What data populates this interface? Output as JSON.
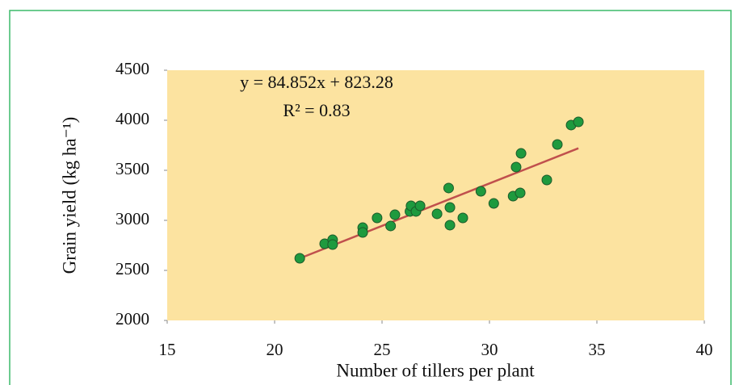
{
  "chart_data": {
    "type": "scatter",
    "xlabel": "Number of tillers per plant",
    "ylabel": "Grain yield (kg ha⁻¹)",
    "annotations": [
      "y = 84.852x + 823.28",
      "R² = 0.83"
    ],
    "xlim": [
      15,
      40
    ],
    "xticks": [
      15,
      20,
      25,
      30,
      35,
      40
    ],
    "ylim": [
      2000,
      4500
    ],
    "yticks": [
      2000,
      2500,
      3000,
      3500,
      4000,
      4500
    ],
    "background": "#fce3a0",
    "series": [
      {
        "color": "#1e9a3e",
        "x": [
          21.17,
          22.33,
          22.7,
          22.7,
          24.1,
          24.1,
          24.77,
          25.4,
          25.6,
          26.3,
          26.35,
          26.58,
          26.77,
          27.56,
          28.1,
          28.16,
          28.16,
          28.76,
          29.6,
          30.2,
          31.1,
          31.24,
          31.43,
          31.47,
          32.67,
          33.16,
          33.8,
          34.14
        ],
        "values": [
          2621,
          2766,
          2806,
          2758,
          2927,
          2879,
          3024,
          2944,
          3056,
          3089,
          3145,
          3089,
          3145,
          3065,
          3323,
          3129,
          2952,
          3024,
          3290,
          3169,
          3242,
          3532,
          3274,
          3669,
          3403,
          3758,
          3952,
          3984
        ]
      }
    ],
    "trendline": {
      "color": "#c0504d",
      "x": [
        21.17,
        34.14
      ],
      "values": [
        2620,
        3720
      ]
    }
  }
}
